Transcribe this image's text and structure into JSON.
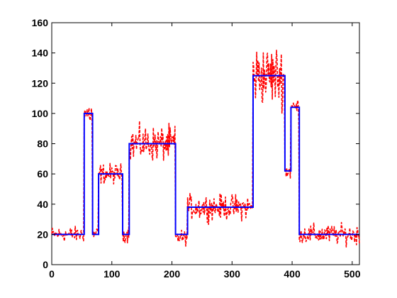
{
  "chart_data": {
    "type": "line",
    "title": "",
    "xlabel": "",
    "ylabel": "",
    "xlim": [
      0,
      512
    ],
    "ylim": [
      0,
      160
    ],
    "xticks": [
      0,
      100,
      200,
      300,
      400,
      500
    ],
    "yticks": [
      0,
      20,
      40,
      60,
      80,
      100,
      120,
      140,
      160
    ],
    "grid": false,
    "legend": "none",
    "colors": {
      "step": "#0000ff",
      "noisy": "#ff0000"
    },
    "series": [
      {
        "style": "solid",
        "color": "#0000ff",
        "points": [
          [
            0,
            20
          ],
          [
            54,
            20
          ],
          [
            54,
            100
          ],
          [
            68,
            100
          ],
          [
            68,
            20
          ],
          [
            78,
            20
          ],
          [
            78,
            60
          ],
          [
            118,
            60
          ],
          [
            118,
            20
          ],
          [
            129,
            20
          ],
          [
            129,
            80
          ],
          [
            206,
            80
          ],
          [
            206,
            20
          ],
          [
            226,
            20
          ],
          [
            226,
            38
          ],
          [
            335,
            38
          ],
          [
            335,
            125
          ],
          [
            388,
            125
          ],
          [
            388,
            62
          ],
          [
            398,
            62
          ],
          [
            398,
            104
          ],
          [
            412,
            104
          ],
          [
            412,
            20
          ],
          [
            512,
            20
          ]
        ]
      },
      {
        "style": "dashed",
        "color": "#ff0000",
        "noise_amplitude_levels": [
          [
            0,
            20,
            3
          ],
          [
            54,
            100,
            5
          ],
          [
            68,
            20,
            3
          ],
          [
            78,
            60,
            4
          ],
          [
            118,
            20,
            3
          ],
          [
            129,
            80,
            7
          ],
          [
            206,
            18,
            3
          ],
          [
            226,
            38,
            5
          ],
          [
            335,
            125,
            12
          ],
          [
            388,
            62,
            4
          ],
          [
            398,
            104,
            4
          ],
          [
            412,
            20,
            4
          ]
        ]
      }
    ]
  }
}
